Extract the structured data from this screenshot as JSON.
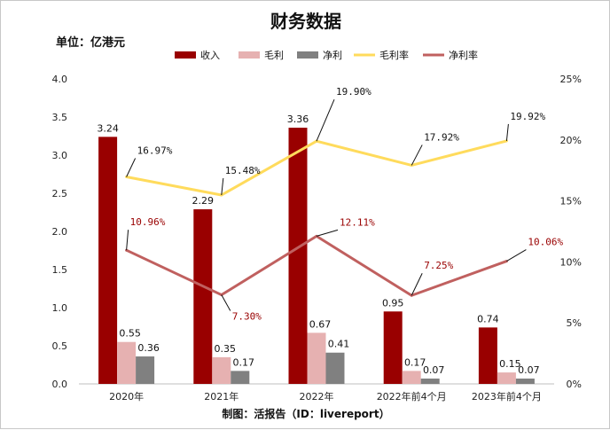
{
  "chart_data": {
    "type": "bar",
    "title": "财务数据",
    "unit_label": "单位：亿港元",
    "credit": "制图：活报告（ID：livereport）",
    "categories": [
      "2020年",
      "2021年",
      "2022年",
      "2022年前4个月",
      "2023年前4个月"
    ],
    "y_left": {
      "min": 0,
      "max": 4,
      "ticks": [
        "0.0",
        "0.5",
        "1.0",
        "1.5",
        "2.0",
        "2.5",
        "3.0",
        "3.5",
        "4.0"
      ]
    },
    "y_right": {
      "min": 0,
      "max": 25,
      "ticks": [
        "0%",
        "5%",
        "10%",
        "15%",
        "20%",
        "25%"
      ]
    },
    "bar_series": [
      {
        "name": "收入",
        "color": "#990000",
        "values": [
          3.24,
          2.29,
          3.36,
          0.95,
          0.74
        ],
        "labels": [
          "3.24",
          "2.29",
          "3.36",
          "0.95",
          "0.74"
        ]
      },
      {
        "name": "毛利",
        "color": "#e6b1b1",
        "values": [
          0.55,
          0.35,
          0.67,
          0.17,
          0.15
        ],
        "labels": [
          "0.55",
          "0.35",
          "0.67",
          "0.17",
          "0.15"
        ]
      },
      {
        "name": "净利",
        "color": "#808080",
        "values": [
          0.36,
          0.17,
          0.41,
          0.07,
          0.07
        ],
        "labels": [
          "0.36",
          "0.17",
          "0.41",
          "0.07",
          "0.07"
        ]
      }
    ],
    "line_series": [
      {
        "name": "毛利率",
        "color": "#ffdb5c",
        "label_color": "#111111",
        "values": [
          16.97,
          15.48,
          19.9,
          17.92,
          19.92
        ],
        "labels": [
          "16.97%",
          "15.48%",
          "19.90%",
          "17.92%",
          "19.92%"
        ]
      },
      {
        "name": "净利率",
        "color": "#c0605f",
        "label_color": "#990000",
        "values": [
          10.96,
          7.3,
          12.11,
          7.25,
          10.06
        ],
        "labels": [
          "10.96%",
          "7.30%",
          "12.11%",
          "7.25%",
          "10.06%"
        ]
      }
    ],
    "legend_position": "top",
    "grid": false
  }
}
